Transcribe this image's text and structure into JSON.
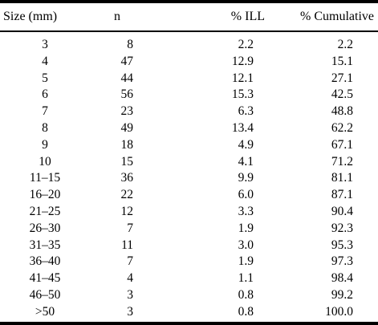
{
  "table": {
    "headers": {
      "size": "Size (mm)",
      "n": "n",
      "ill": "% ILL",
      "cumulative": "% Cumulative"
    },
    "rows": [
      {
        "size": "3",
        "n": "8",
        "ill": "2.2",
        "cumulative": "2.2"
      },
      {
        "size": "4",
        "n": "47",
        "ill": "12.9",
        "cumulative": "15.1"
      },
      {
        "size": "5",
        "n": "44",
        "ill": "12.1",
        "cumulative": "27.1"
      },
      {
        "size": "6",
        "n": "56",
        "ill": "15.3",
        "cumulative": "42.5"
      },
      {
        "size": "7",
        "n": "23",
        "ill": "6.3",
        "cumulative": "48.8"
      },
      {
        "size": "8",
        "n": "49",
        "ill": "13.4",
        "cumulative": "62.2"
      },
      {
        "size": "9",
        "n": "18",
        "ill": "4.9",
        "cumulative": "67.1"
      },
      {
        "size": "10",
        "n": "15",
        "ill": "4.1",
        "cumulative": "71.2"
      },
      {
        "size": "11–15",
        "n": "36",
        "ill": "9.9",
        "cumulative": "81.1"
      },
      {
        "size": "16–20",
        "n": "22",
        "ill": "6.0",
        "cumulative": "87.1"
      },
      {
        "size": "21–25",
        "n": "12",
        "ill": "3.3",
        "cumulative": "90.4"
      },
      {
        "size": "26–30",
        "n": "7",
        "ill": "1.9",
        "cumulative": "92.3"
      },
      {
        "size": "31–35",
        "n": "11",
        "ill": "3.0",
        "cumulative": "95.3"
      },
      {
        "size": "36–40",
        "n": "7",
        "ill": "1.9",
        "cumulative": "97.3"
      },
      {
        "size": "41–45",
        "n": "4",
        "ill": "1.1",
        "cumulative": "98.4"
      },
      {
        "size": "46–50",
        "n": "3",
        "ill": "0.8",
        "cumulative": "99.2"
      },
      {
        "size": ">50",
        "n": "3",
        "ill": "0.8",
        "cumulative": "100.0"
      }
    ]
  }
}
